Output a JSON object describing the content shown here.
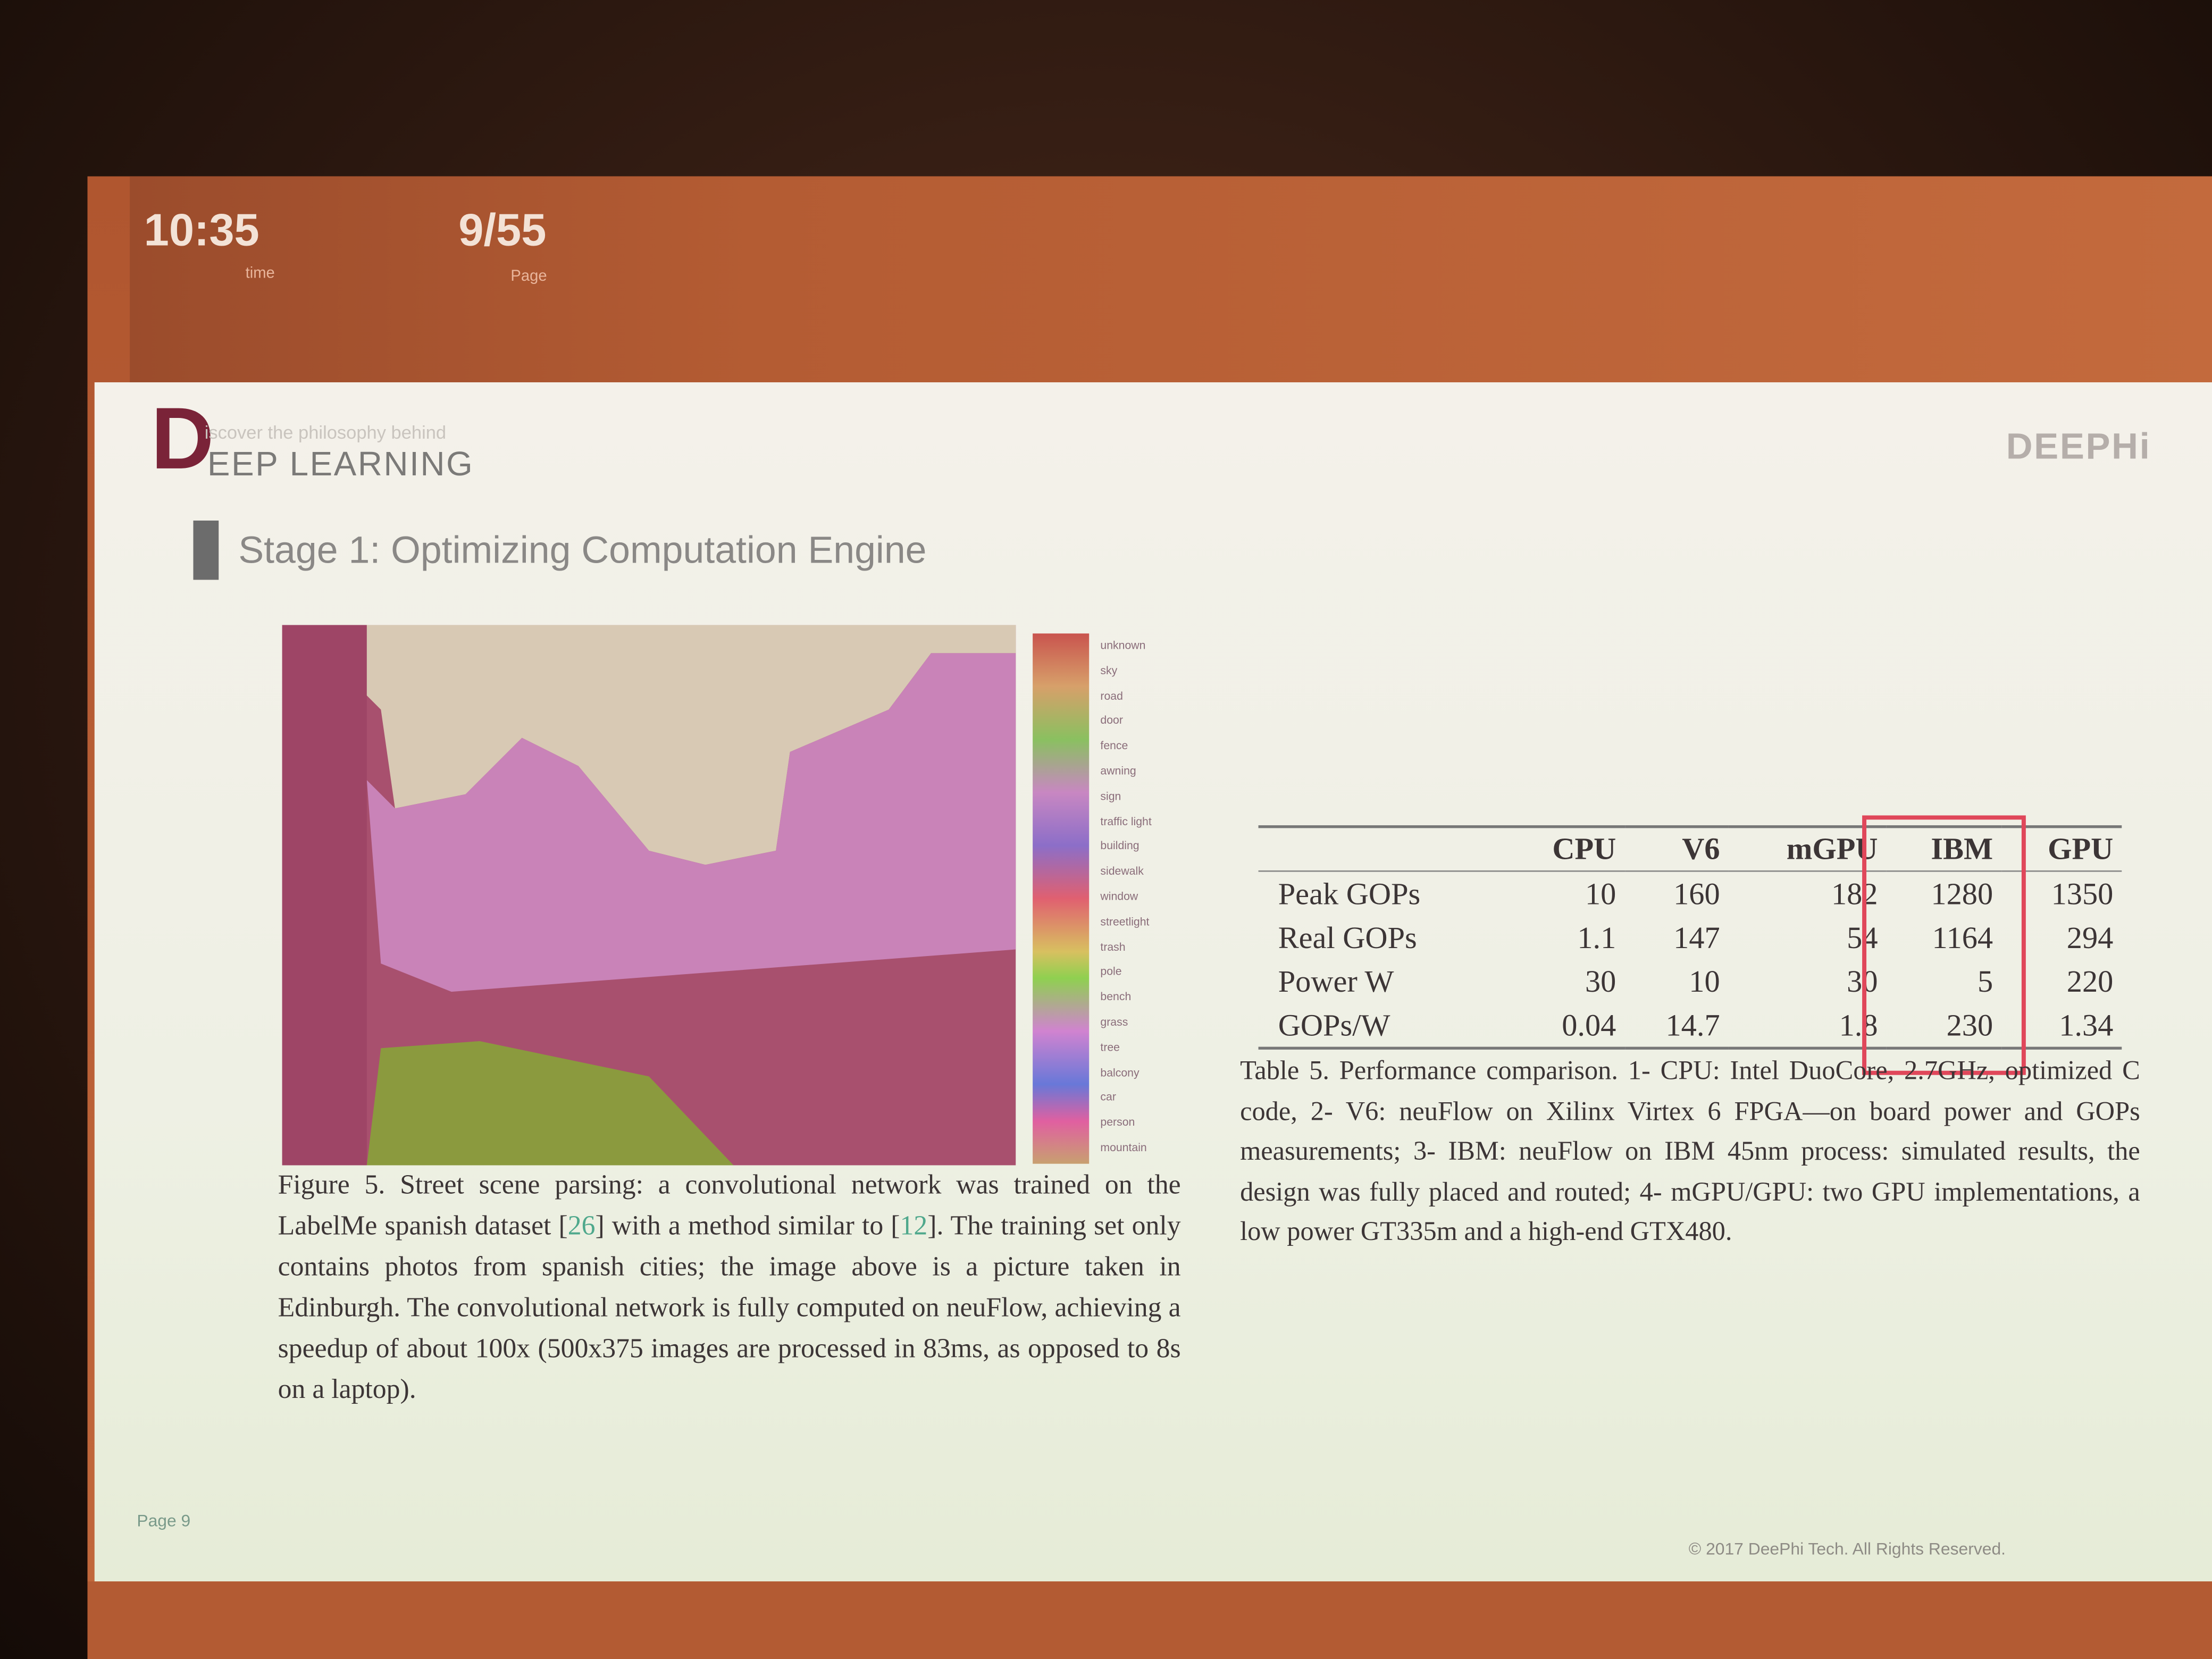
{
  "header": {
    "time": "10:35",
    "time_label": "time",
    "page": "9/55",
    "page_label": "Page"
  },
  "slide": {
    "logo_letter": "D",
    "logo_tagline": "iscover the philosophy behind",
    "logo_title": "EEP LEARNING",
    "brand": "DEEPHi",
    "heading": "Stage 1: Optimizing Computation Engine",
    "figure": {
      "legend": [
        "unknown",
        "sky",
        "road",
        "door",
        "fence",
        "awning",
        "sign",
        "traffic light",
        "building",
        "sidewalk",
        "window",
        "streetlight",
        "trash",
        "pole",
        "bench",
        "grass",
        "tree",
        "balcony",
        "car",
        "person",
        "mountain"
      ],
      "caption": [
        "Figure 5. Street scene parsing: a convolutional network was trained on the LabelMe spanish dataset [",
        "26",
        "] with a method similar to [",
        "12",
        "]. The training set only contains photos from spanish cities; the image above is a picture taken in Edinburgh. The convolutional network is fully computed on neuFlow, achieving a speedup of about 100x (500x375 images are processed in 83ms, as opposed to 8s on a laptop)."
      ]
    },
    "table": {
      "columns": [
        "CPU",
        "V6",
        "mGPU",
        "IBM",
        "GPU"
      ],
      "rows": [
        {
          "label": "Peak GOPs",
          "cells": [
            10,
            160,
            182,
            1280,
            1350
          ]
        },
        {
          "label": "Real GOPs",
          "cells": [
            1.1,
            147,
            54,
            1164,
            294
          ]
        },
        {
          "label": "Power W",
          "cells": [
            30,
            10,
            30,
            5,
            220
          ]
        },
        {
          "label": "GOPs/W",
          "cells": [
            0.04,
            14.7,
            1.8,
            230,
            1.34
          ]
        }
      ],
      "caption": "Table 5. Performance comparison. 1- CPU: Intel DuoCore, 2.7GHz, optimized C code, 2- V6: neuFlow on Xilinx Virtex 6 FPGA—on board power and GOPs measurements; 3- IBM: neuFlow on IBM 45nm process: simulated results, the design was fully placed and routed; 4- mGPU/GPU: two GPU implementations, a low power GT335m and a high-end GTX480."
    },
    "footer": {
      "page": "Page 9",
      "copyright": "© 2017 DeePhi Tech. All Rights Reserved."
    }
  }
}
